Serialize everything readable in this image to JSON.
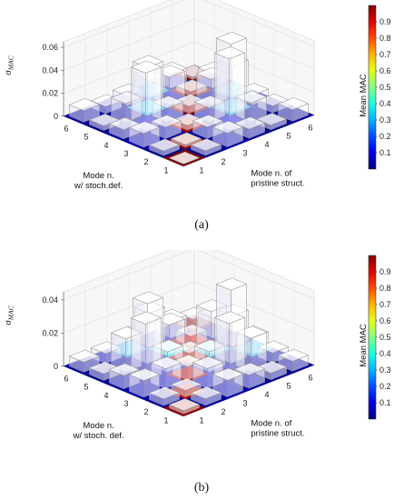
{
  "chart_data": [
    {
      "type": "bar3d",
      "panel_label": "(a)",
      "zlabel": "σ",
      "zlabel_sub": "MAC",
      "xlabel": [
        "Mode n.",
        "w/ stoch.def."
      ],
      "ylabel": [
        "Mode n. of",
        "pristine struct."
      ],
      "x_ticks": [
        "1",
        "2",
        "3",
        "4",
        "5",
        "6"
      ],
      "y_ticks": [
        "1",
        "2",
        "3",
        "4",
        "5",
        "6"
      ],
      "z_ticks": [
        "0",
        "0.02",
        "0.04",
        "0.06"
      ],
      "zlim": [
        0,
        0.065
      ],
      "colorbar": {
        "label": "Mean MAC",
        "range": [
          0,
          1
        ],
        "ticks": [
          "0.1",
          "0.2",
          "0.3",
          "0.4",
          "0.5",
          "0.6",
          "0.7",
          "0.8",
          "0.9"
        ]
      },
      "mean_mac": [
        [
          1.0,
          0.02,
          0.05,
          0.03,
          0.02,
          0.03
        ],
        [
          0.02,
          0.97,
          0.04,
          0.1,
          0.03,
          0.05
        ],
        [
          0.05,
          0.04,
          0.95,
          0.05,
          0.3,
          0.04
        ],
        [
          0.03,
          0.1,
          0.05,
          0.96,
          0.05,
          0.3
        ],
        [
          0.02,
          0.03,
          0.32,
          0.05,
          0.97,
          0.05
        ],
        [
          0.03,
          0.05,
          0.04,
          0.3,
          0.05,
          0.99
        ]
      ],
      "sigma_mac": [
        [
          0.0,
          0.004,
          0.012,
          0.008,
          0.004,
          0.01
        ],
        [
          0.004,
          0.002,
          0.01,
          0.062,
          0.016,
          0.006
        ],
        [
          0.012,
          0.01,
          0.004,
          0.012,
          0.06,
          0.008
        ],
        [
          0.008,
          0.05,
          0.012,
          0.006,
          0.022,
          0.026
        ],
        [
          0.004,
          0.016,
          0.04,
          0.024,
          0.004,
          0.012
        ],
        [
          0.01,
          0.006,
          0.008,
          0.014,
          0.012,
          0.002
        ]
      ]
    },
    {
      "type": "bar3d",
      "panel_label": "(b)",
      "zlabel": "σ",
      "zlabel_sub": "MAC",
      "xlabel": [
        "Mode n.",
        "w/ stoch. def."
      ],
      "ylabel": [
        "Mode n. of",
        "pristine struct."
      ],
      "x_ticks": [
        "1",
        "2",
        "3",
        "4",
        "5",
        "6"
      ],
      "y_ticks": [
        "1",
        "2",
        "3",
        "4",
        "5",
        "6"
      ],
      "z_ticks": [
        "0",
        "0.02",
        "0.04"
      ],
      "zlim": [
        0,
        0.045
      ],
      "colorbar": {
        "label": "Mean MAC",
        "range": [
          0,
          1
        ],
        "ticks": [
          "0.1",
          "0.2",
          "0.3",
          "0.4",
          "0.5",
          "0.6",
          "0.7",
          "0.8",
          "0.9"
        ]
      },
      "mean_mac": [
        [
          0.98,
          0.03,
          0.05,
          0.04,
          0.02,
          0.03
        ],
        [
          0.03,
          0.95,
          0.06,
          0.04,
          0.03,
          0.05
        ],
        [
          0.05,
          0.06,
          0.94,
          0.08,
          0.04,
          0.3
        ],
        [
          0.04,
          0.04,
          0.08,
          0.93,
          0.35,
          0.05
        ],
        [
          0.02,
          0.03,
          0.04,
          0.35,
          0.92,
          0.06
        ],
        [
          0.03,
          0.05,
          0.3,
          0.05,
          0.06,
          0.97
        ]
      ],
      "sigma_mac": [
        [
          0.002,
          0.004,
          0.01,
          0.008,
          0.004,
          0.006
        ],
        [
          0.004,
          0.004,
          0.012,
          0.034,
          0.02,
          0.006
        ],
        [
          0.01,
          0.012,
          0.008,
          0.012,
          0.044,
          0.01
        ],
        [
          0.008,
          0.034,
          0.012,
          0.006,
          0.026,
          0.018
        ],
        [
          0.004,
          0.02,
          0.036,
          0.018,
          0.006,
          0.012
        ],
        [
          0.006,
          0.006,
          0.01,
          0.02,
          0.01,
          0.006
        ]
      ]
    }
  ]
}
